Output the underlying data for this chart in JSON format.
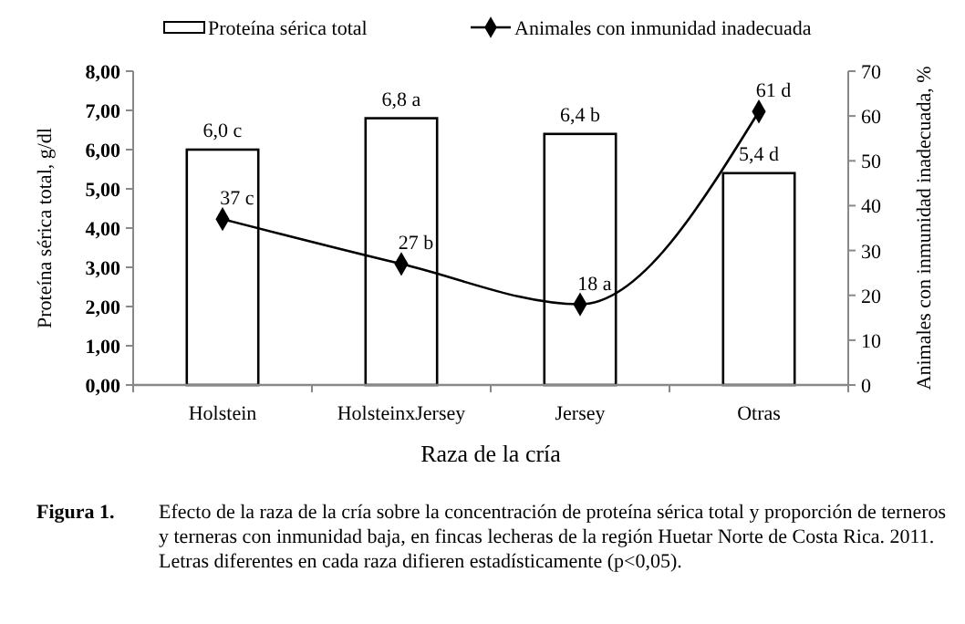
{
  "chart_data": {
    "type": "bar",
    "xlabel": "Raza de la cría",
    "ylabel": "Proteína sérica total, g/dl",
    "y2label": "Animales con inmunidad inadecuada, %",
    "categories": [
      "Holstein",
      "HolsteinxJersey",
      "Jersey",
      "Otras"
    ],
    "series": [
      {
        "name": "Proteína sérica total",
        "color": "#ffffff",
        "values": [
          6.0,
          6.8,
          6.4,
          5.4
        ],
        "value_labels": [
          "6,0 c",
          "6,8 a",
          "6,4 b",
          "5,4 d"
        ]
      },
      {
        "name": "Animales con inmunidad inadecuada",
        "type": "line",
        "axis": "y2",
        "color": "#000000",
        "marker": "diamond",
        "values": [
          37,
          27,
          18,
          61
        ],
        "value_labels": [
          "37 c",
          "27 b",
          "18 a",
          "61 d"
        ]
      }
    ],
    "ylim": [
      0,
      8
    ],
    "yticks": [
      {
        "value": 0,
        "label": "0,00"
      },
      {
        "value": 1,
        "label": "1,00"
      },
      {
        "value": 2,
        "label": "2,00"
      },
      {
        "value": 3,
        "label": "3,00"
      },
      {
        "value": 4,
        "label": "4,00"
      },
      {
        "value": 5,
        "label": "5,00"
      },
      {
        "value": 6,
        "label": "6,00"
      },
      {
        "value": 7,
        "label": "7,00"
      },
      {
        "value": 8,
        "label": "8,00"
      }
    ],
    "y2lim": [
      0,
      70
    ],
    "y2ticks": [
      0,
      10,
      20,
      30,
      40,
      50,
      60,
      70
    ],
    "legend": "top",
    "grid": false,
    "annotations": [
      "Figura 1.",
      "Efecto de la raza de la cría sobre la concentración de proteína sérica total y proporción de terneros y terneras con inmunidad baja, en fincas lecheras de la región Huetar Norte de Costa Rica. 2011. Letras diferentes en cada raza difieren estadísticamente (p<0,05)."
    ]
  }
}
